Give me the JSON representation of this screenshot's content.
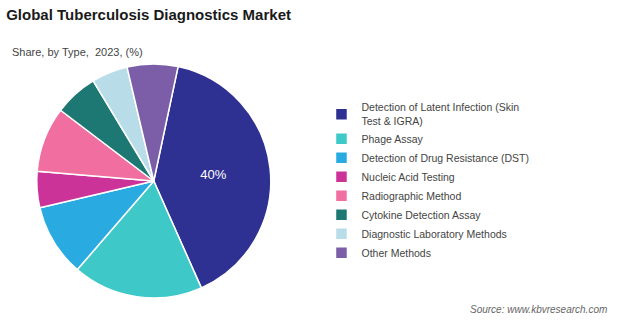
{
  "chart_data": {
    "type": "pie",
    "title": "Global Tuberculosis Diagnostics Market",
    "subtitle": "Share, by Type,  2023, (%)",
    "annotations": [
      "Source: www.kbvresearch.com"
    ],
    "categories": [
      "Detection of Latent Infection (Skin\n  Test & IGRA)",
      "Phage Assay",
      "Detection of Drug Resistance (DST)",
      "Nucleic Acid Testing",
      "Radiographic Method",
      "Cytokine Detection Assay",
      "Diagnostic Laboratory Methods",
      "Other Methods"
    ],
    "values": [
      40,
      18,
      10,
      5,
      9,
      6,
      5,
      7
    ],
    "colors": [
      "#2e3192",
      "#3ec8c8",
      "#29abe2",
      "#cc3399",
      "#f06fa0",
      "#1d7874",
      "#b8dce8",
      "#7b5ea7"
    ],
    "value_labels": [
      "40%",
      null,
      null,
      null,
      null,
      null,
      null,
      null
    ],
    "legend": "right"
  }
}
